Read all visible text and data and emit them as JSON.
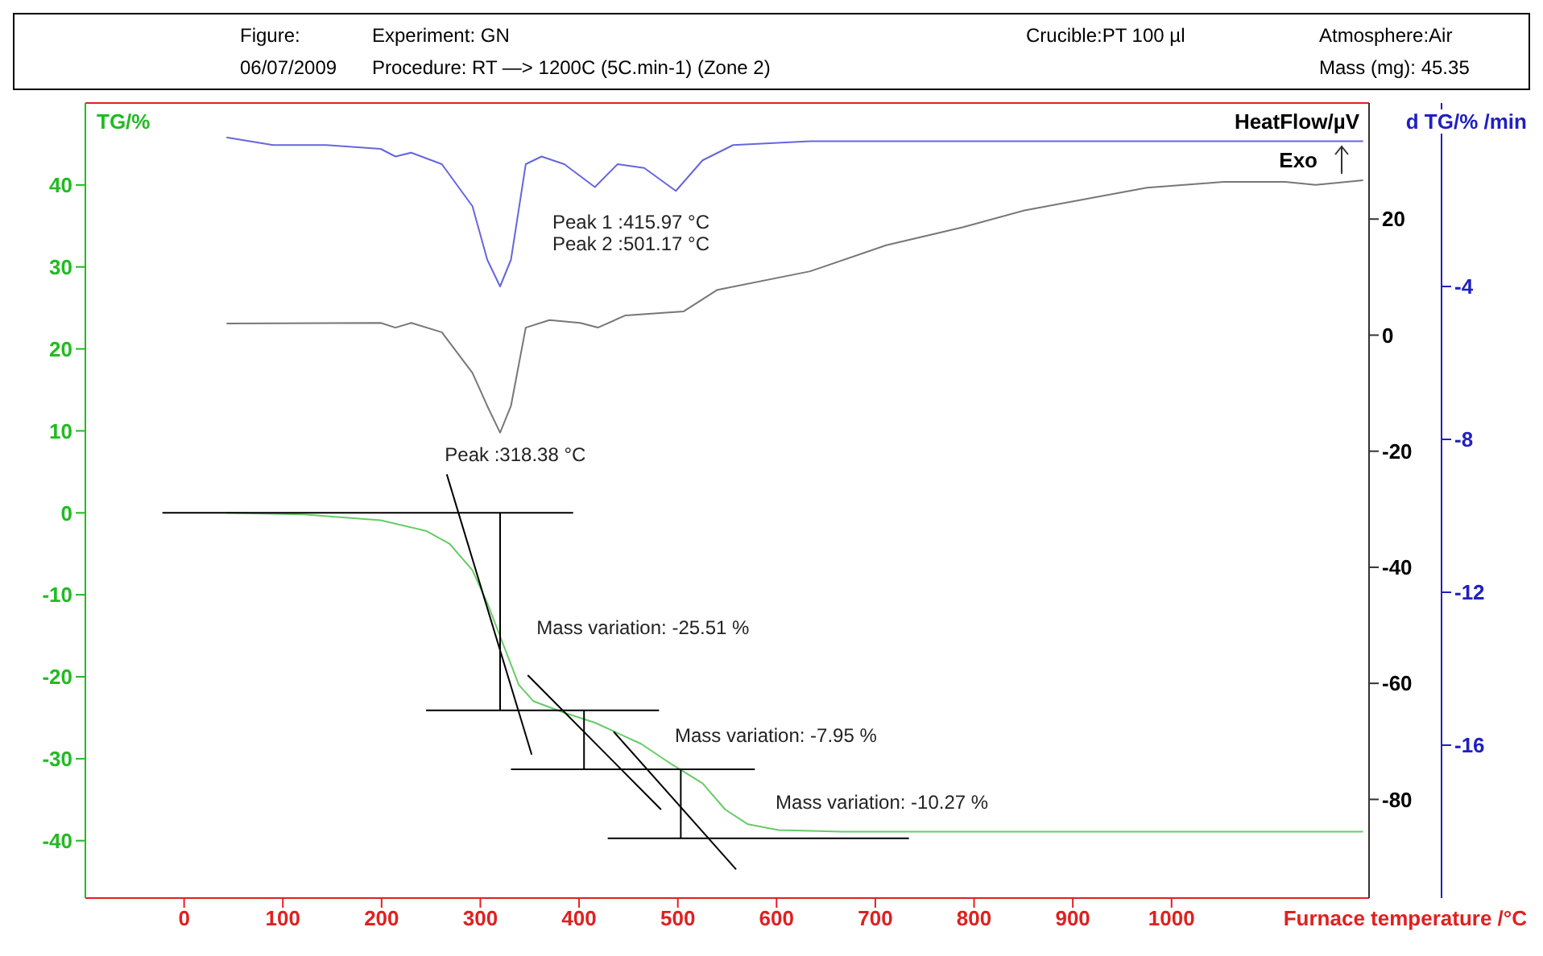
{
  "chart_data": {
    "type": "line",
    "xlabel": "Furnace temperature /°C",
    "ylabel": "TG/%",
    "y2label": "HeatFlow/µV",
    "y3label": "d TG/% /min",
    "annotations": [
      "Figure:",
      "Experiment: GN",
      "Crucible:PT 100 µl",
      "Atmosphere:Air",
      "06/07/2009",
      "Procedure: RT —> 1200C (5C.min-1) (Zone 2)",
      "Mass (mg): 45.35",
      "Exo",
      "Peak 1 :415.97 °C",
      "Peak 2 :501.17 °C",
      "Peak :318.38 °C",
      "Mass variation: -25.51 %",
      "Mass variation: -7.95 %",
      "Mass variation: -10.27 %"
    ],
    "series": [
      {
        "color": "#66cc66",
        "x": [
          43,
          121,
          199,
          245,
          269,
          292,
          307,
          323,
          339,
          354,
          385,
          416,
          463,
          494,
          525,
          548,
          571,
          602,
          665,
          1194
        ],
        "values": [
          0,
          -0.2,
          -0.9,
          -2.2,
          -3.8,
          -7,
          -11,
          -16,
          -21,
          -23,
          -24.4,
          -25.6,
          -28.2,
          -30.7,
          -33,
          -36.2,
          -38,
          -38.7,
          -38.9,
          -38.9
        ]
      },
      {
        "color": "#777777",
        "axis": "y2",
        "x": [
          43,
          199,
          214,
          230,
          261,
          292,
          307,
          320,
          331,
          346,
          370,
          401,
          419,
          447,
          506,
          540,
          634,
          711,
          789,
          851,
          975,
          1053,
          1115,
          1146,
          1194
        ],
        "values": [
          2,
          2.1,
          1.3,
          2.1,
          0.5,
          -6.5,
          -12.2,
          -16.8,
          -12.2,
          1.3,
          2.6,
          2.1,
          1.3,
          3.4,
          4.1,
          7.8,
          11,
          15.5,
          18.6,
          21.5,
          25.4,
          26.4,
          26.4,
          25.9,
          26.7
        ]
      },
      {
        "color": "#6666dd",
        "axis": "y3",
        "x": [
          43,
          90,
          144,
          199,
          214,
          230,
          261,
          292,
          307,
          320,
          331,
          346,
          362,
          385,
          416,
          439,
          466,
          498,
          525,
          556,
          634,
          1194
        ],
        "values": [
          -0.1,
          -0.3,
          -0.3,
          -0.4,
          -0.6,
          -0.5,
          -0.8,
          -1.9,
          -3.3,
          -4,
          -3.3,
          -0.8,
          -0.6,
          -0.8,
          -1.4,
          -0.8,
          -0.9,
          -1.5,
          -0.7,
          -0.3,
          -0.2,
          -0.2
        ]
      },
      {
        "color": "#000000",
        "x": [
          -22,
          394
        ],
        "values": [
          0,
          0
        ]
      },
      {
        "color": "#000000",
        "x": [
          245,
          481
        ],
        "values": [
          -24.1,
          -24.1
        ]
      },
      {
        "color": "#000000",
        "x": [
          331,
          578
        ],
        "values": [
          -31.3,
          -31.3
        ]
      },
      {
        "color": "#000000",
        "x": [
          429,
          734
        ],
        "values": [
          -39.7,
          -39.7
        ]
      },
      {
        "color": "#000000",
        "x": [
          320,
          320
        ],
        "values": [
          0,
          -24.1
        ]
      },
      {
        "color": "#000000",
        "x": [
          405,
          405
        ],
        "values": [
          -24.1,
          -31.3
        ]
      },
      {
        "color": "#000000",
        "x": [
          503,
          503
        ],
        "values": [
          -31.3,
          -39.7
        ]
      },
      {
        "color": "#000000",
        "x": [
          266,
          352
        ],
        "values": [
          4.7,
          -29.5
        ]
      },
      {
        "color": "#000000",
        "x": [
          348,
          483
        ],
        "values": [
          -19.8,
          -36.2
        ]
      },
      {
        "color": "#000000",
        "x": [
          435,
          559
        ],
        "values": [
          -26.7,
          -43.5
        ]
      }
    ],
    "xlim": [
      -100,
      1200
    ],
    "xticks": [
      0,
      100,
      200,
      300,
      400,
      500,
      600,
      700,
      800,
      900,
      1000
    ],
    "ylim": [
      -47,
      50
    ],
    "yticks": [
      -40,
      -30,
      -20,
      -10,
      0,
      10,
      20,
      30,
      40
    ],
    "y2lim": [
      -97,
      40
    ],
    "y2ticks": [
      -80,
      -60,
      -40,
      -20,
      0,
      20
    ],
    "y3lim": [
      -20,
      0.8
    ],
    "y3ticks": [
      -16,
      -12,
      -8,
      -4
    ],
    "grid": false,
    "marker": "none",
    "line_style": "solid"
  }
}
